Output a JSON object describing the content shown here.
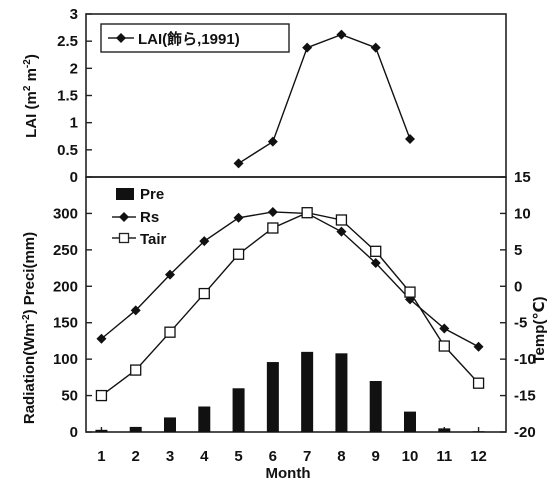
{
  "chart_data": [
    {
      "type": "line",
      "panel": "top",
      "ylabel_main": "LAI",
      "ylabel_unit": "(m",
      "ylabel_sup1": "2",
      "ylabel_mid": " m",
      "ylabel_sup2": "-2",
      "ylabel_end": ")",
      "ylim": [
        0,
        3
      ],
      "yticks": [
        "0",
        "0.5",
        "1",
        "1.5",
        "2",
        "2.5",
        "3"
      ],
      "yticks_values": [
        0,
        0.5,
        1,
        1.5,
        2,
        2.5,
        3
      ],
      "series": [
        {
          "name": "LAI(飾ら,1991)",
          "marker": "filled-diamond",
          "x": [
            5,
            6,
            7,
            8,
            9,
            10
          ],
          "values": [
            0.25,
            0.65,
            2.38,
            2.62,
            2.38,
            0.7
          ]
        }
      ],
      "legend_position": "top-left"
    },
    {
      "type": "bar+line",
      "panel": "bottom",
      "xlabel": "Month",
      "categories": [
        "1",
        "2",
        "3",
        "4",
        "5",
        "6",
        "7",
        "8",
        "9",
        "10",
        "11",
        "12"
      ],
      "ylabel_left": "Radiation(Wm",
      "ylabel_left_sup": "-2",
      "ylabel_left_end": ")  Preci(mm)",
      "ylabel_right": "Temp(℃)",
      "ylim_left": [
        0,
        350
      ],
      "yticks_left": [
        "0",
        "50",
        "100",
        "150",
        "200",
        "250",
        "300"
      ],
      "yticks_left_values": [
        0,
        50,
        100,
        150,
        200,
        250,
        300
      ],
      "ylim_right": [
        -20,
        15
      ],
      "yticks_right": [
        "-20",
        "-15",
        "-10",
        "-5",
        "0",
        "5",
        "10",
        "15"
      ],
      "yticks_right_values": [
        -20,
        -15,
        -10,
        -5,
        0,
        5,
        10,
        15
      ],
      "series": [
        {
          "name": "Pre",
          "kind": "bar",
          "axis": "left",
          "values": [
            3,
            7,
            20,
            35,
            60,
            96,
            110,
            108,
            70,
            28,
            5,
            1
          ]
        },
        {
          "name": "Rs",
          "kind": "line",
          "marker": "filled-diamond",
          "axis": "left",
          "values": [
            128,
            167,
            216,
            262,
            294,
            302,
            300,
            275,
            232,
            182,
            142,
            117
          ]
        },
        {
          "name": "Tair",
          "kind": "line",
          "marker": "open-square",
          "axis": "right",
          "values": [
            -15,
            -11.5,
            -6.3,
            -1,
            4.4,
            8,
            10.1,
            9.1,
            4.8,
            -0.8,
            -8.2,
            -13.3
          ]
        }
      ],
      "legend_position": "top-left"
    }
  ]
}
